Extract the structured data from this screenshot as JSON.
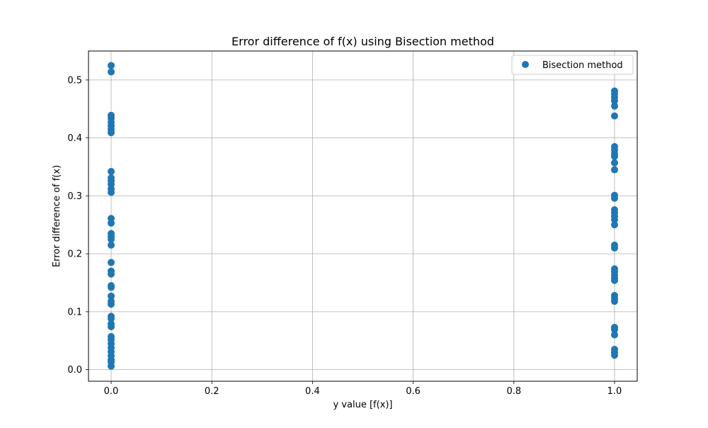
{
  "chart_data": {
    "type": "scatter",
    "title": "Error difference of f(x) using Bisection method",
    "xlabel": "y value [f(x)]",
    "ylabel": "Error difference of f(x)",
    "xlim": [
      -0.045,
      1.045
    ],
    "ylim": [
      -0.02,
      0.55
    ],
    "xticks": [
      0.0,
      0.2,
      0.4,
      0.6,
      0.8,
      1.0
    ],
    "xtick_labels": [
      "0.0",
      "0.2",
      "0.4",
      "0.6",
      "0.8",
      "1.0"
    ],
    "yticks": [
      0.0,
      0.1,
      0.2,
      0.3,
      0.4,
      0.5
    ],
    "ytick_labels": [
      "0.0",
      "0.1",
      "0.2",
      "0.3",
      "0.4",
      "0.5"
    ],
    "grid": true,
    "legend_position": "top-right",
    "series": [
      {
        "name": "Bisection method",
        "color": "#1f77b4",
        "marker": "circle",
        "points": [
          [
            0,
            0.525
          ],
          [
            0,
            0.514
          ],
          [
            0,
            0.439
          ],
          [
            0,
            0.434
          ],
          [
            0,
            0.427
          ],
          [
            0,
            0.421
          ],
          [
            0,
            0.415
          ],
          [
            0,
            0.409
          ],
          [
            0,
            0.342
          ],
          [
            0,
            0.331
          ],
          [
            0,
            0.326
          ],
          [
            0,
            0.32
          ],
          [
            0,
            0.312
          ],
          [
            0,
            0.306
          ],
          [
            0,
            0.261
          ],
          [
            0,
            0.253
          ],
          [
            0,
            0.235
          ],
          [
            0,
            0.23
          ],
          [
            0,
            0.225
          ],
          [
            0,
            0.215
          ],
          [
            0,
            0.185
          ],
          [
            0,
            0.17
          ],
          [
            0,
            0.165
          ],
          [
            0,
            0.145
          ],
          [
            0,
            0.142
          ],
          [
            0,
            0.127
          ],
          [
            0,
            0.118
          ],
          [
            0,
            0.113
          ],
          [
            0,
            0.092
          ],
          [
            0,
            0.088
          ],
          [
            0,
            0.079
          ],
          [
            0,
            0.074
          ],
          [
            0,
            0.057
          ],
          [
            0,
            0.052
          ],
          [
            0,
            0.045
          ],
          [
            0,
            0.038
          ],
          [
            0,
            0.031
          ],
          [
            0,
            0.024
          ],
          [
            0,
            0.017
          ],
          [
            0,
            0.013
          ],
          [
            0,
            0.006
          ],
          [
            1,
            0.481
          ],
          [
            1,
            0.476
          ],
          [
            1,
            0.47
          ],
          [
            1,
            0.464
          ],
          [
            1,
            0.455
          ],
          [
            1,
            0.438
          ],
          [
            1,
            0.385
          ],
          [
            1,
            0.379
          ],
          [
            1,
            0.373
          ],
          [
            1,
            0.368
          ],
          [
            1,
            0.357
          ],
          [
            1,
            0.345
          ],
          [
            1,
            0.301
          ],
          [
            1,
            0.296
          ],
          [
            1,
            0.276
          ],
          [
            1,
            0.271
          ],
          [
            1,
            0.265
          ],
          [
            1,
            0.259
          ],
          [
            1,
            0.25
          ],
          [
            1,
            0.215
          ],
          [
            1,
            0.21
          ],
          [
            1,
            0.174
          ],
          [
            1,
            0.169
          ],
          [
            1,
            0.163
          ],
          [
            1,
            0.158
          ],
          [
            1,
            0.154
          ],
          [
            1,
            0.128
          ],
          [
            1,
            0.123
          ],
          [
            1,
            0.118
          ],
          [
            1,
            0.073
          ],
          [
            1,
            0.069
          ],
          [
            1,
            0.06
          ],
          [
            1,
            0.035
          ],
          [
            1,
            0.03
          ],
          [
            1,
            0.025
          ]
        ]
      }
    ]
  }
}
